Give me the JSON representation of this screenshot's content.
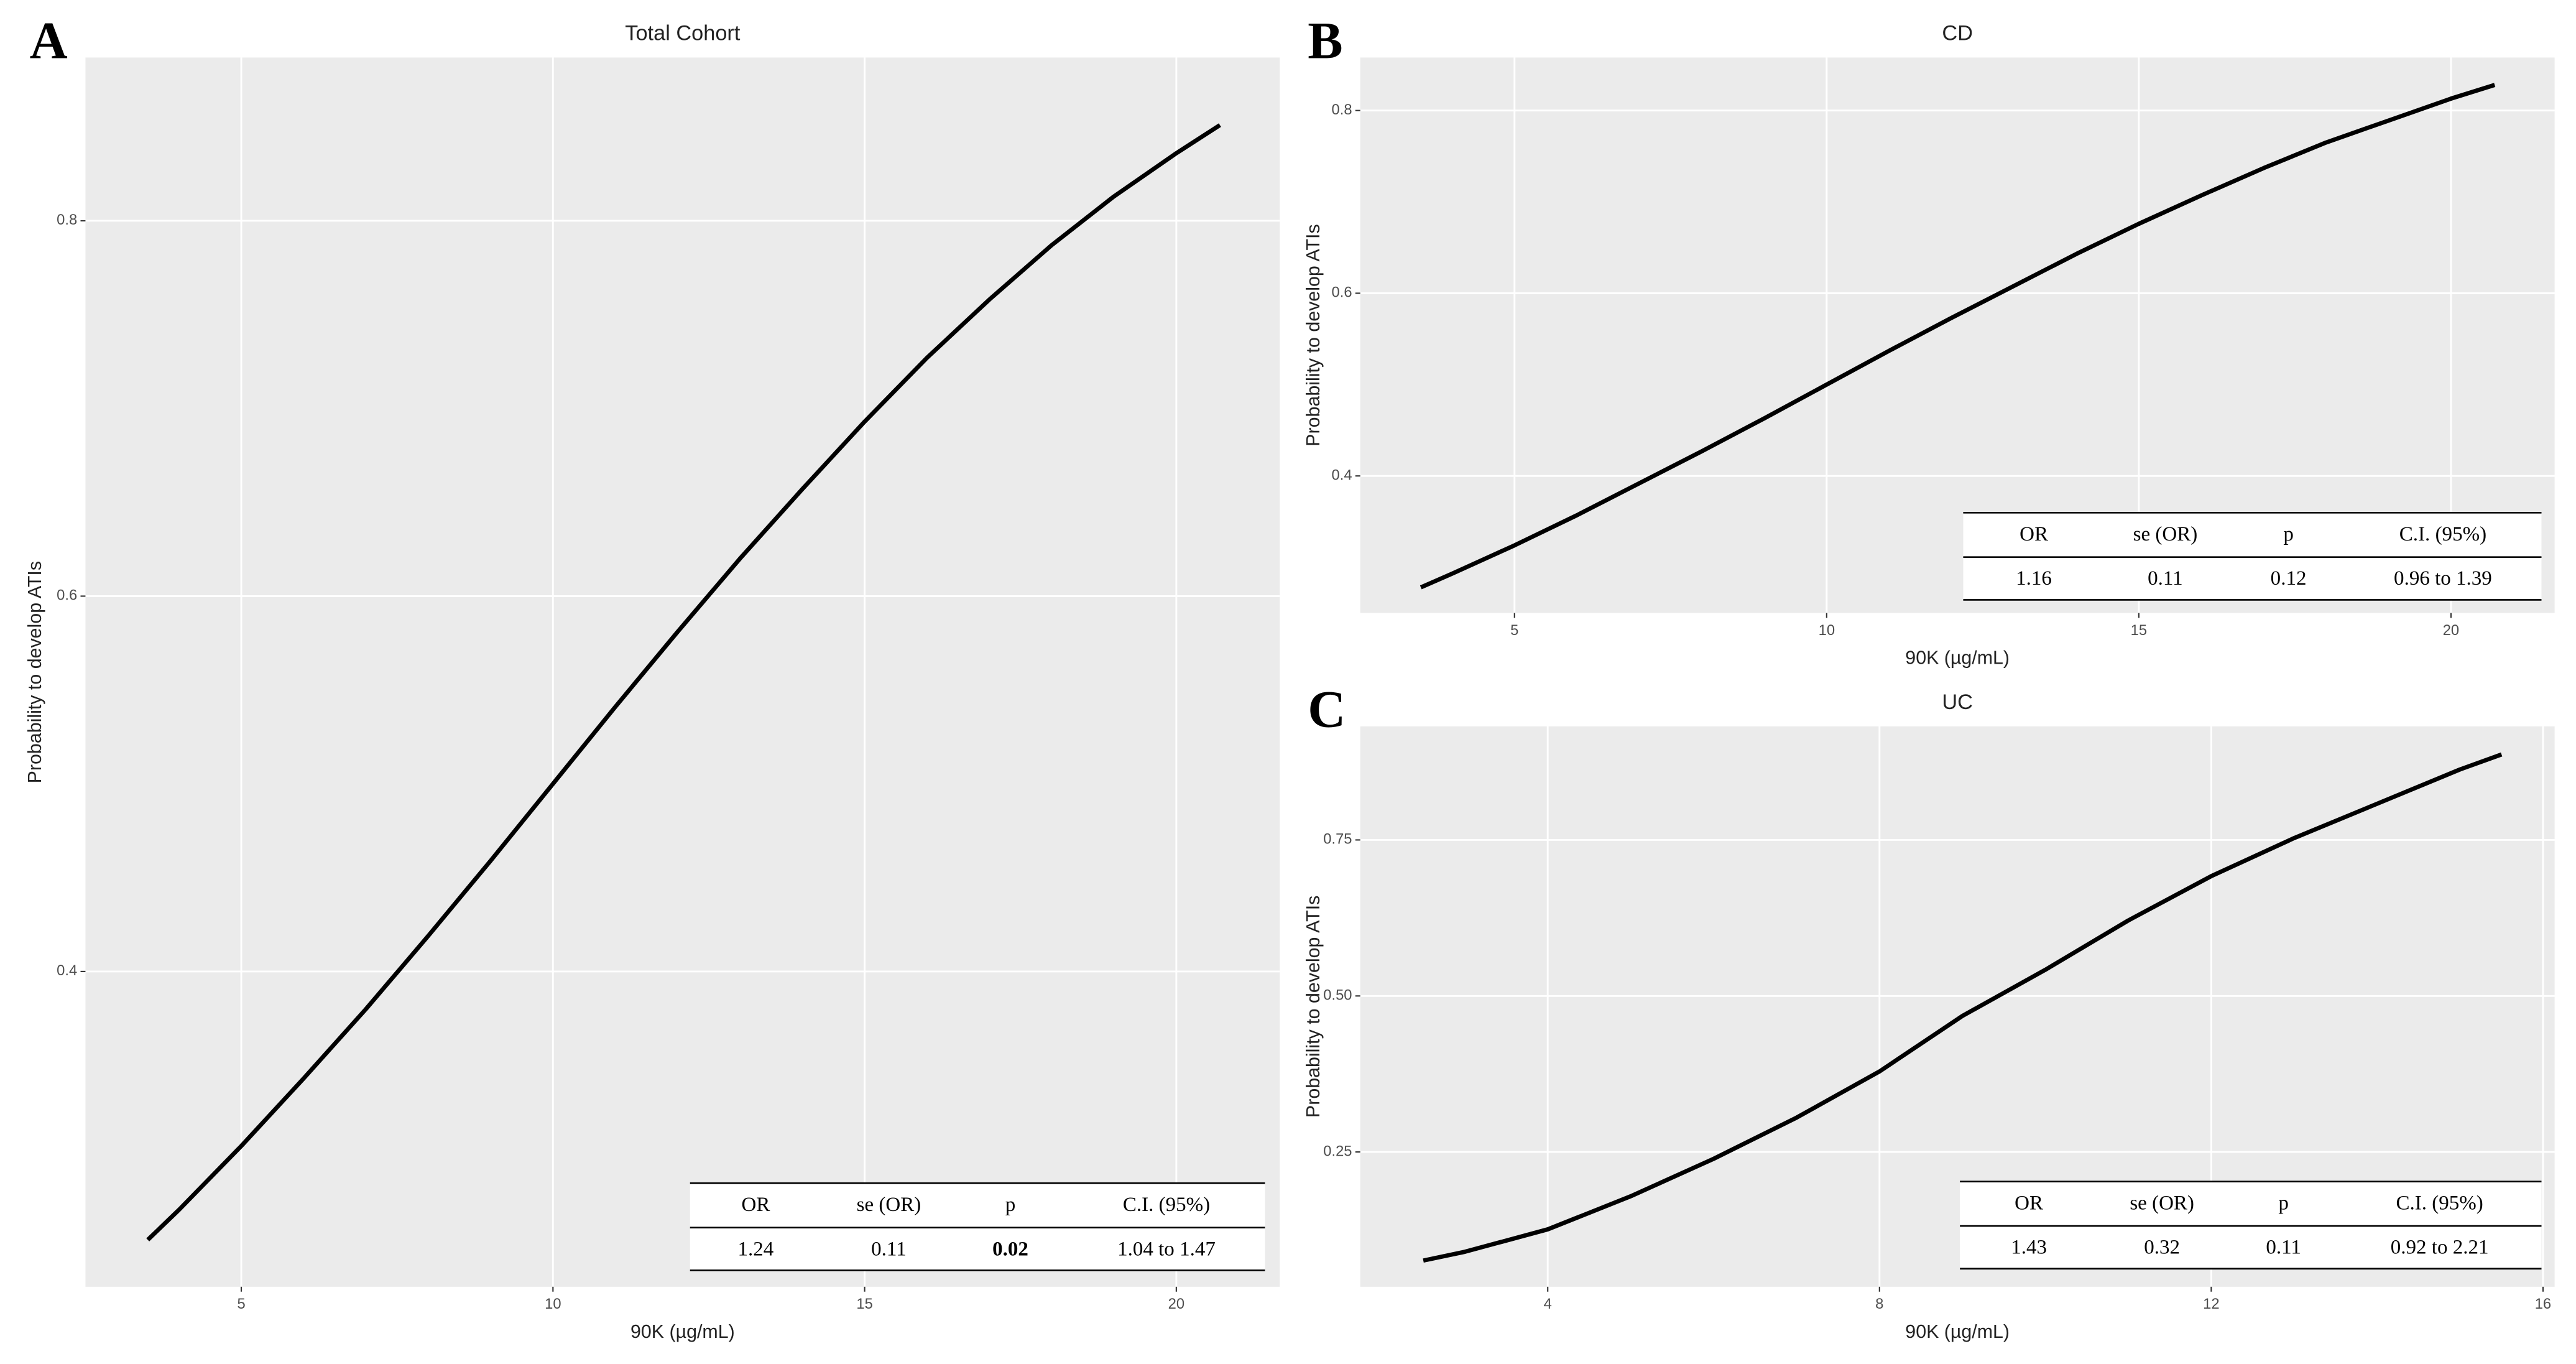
{
  "chart_data": [
    {
      "type": "line",
      "panel": "A",
      "title": "Total Cohort",
      "x_label": "90K (µg/mL)",
      "y_label": "Probability to develop ATIs",
      "x": [
        3.5,
        4,
        5,
        6,
        7,
        8,
        9,
        10,
        11,
        12,
        13,
        14,
        15,
        16,
        17,
        18,
        19,
        20,
        20.7
      ],
      "values": [
        0.257,
        0.273,
        0.307,
        0.343,
        0.38,
        0.419,
        0.459,
        0.5,
        0.541,
        0.581,
        0.62,
        0.657,
        0.693,
        0.727,
        0.758,
        0.787,
        0.813,
        0.836,
        0.851
      ],
      "color": "#000000",
      "xlim": [
        2.5,
        21.66
      ],
      "ylim": [
        0.232,
        0.887
      ],
      "xticks": [
        5,
        10,
        15,
        20
      ],
      "yticks": [
        0.4,
        0.6,
        0.8
      ],
      "grid": true,
      "table": {
        "columns": [
          "OR",
          "se (OR)",
          "p",
          "C.I. (95%)"
        ],
        "rows": [
          [
            1.24,
            0.11,
            0.02,
            "1.04 to 1.47"
          ]
        ],
        "bold_cells": [
          [
            0,
            2
          ]
        ]
      }
    },
    {
      "type": "line",
      "panel": "B",
      "title": "CD",
      "x_label": "90K (µg/mL)",
      "y_label": "Probability to develop ATIs",
      "x": [
        3.5,
        4,
        5,
        6,
        7,
        8,
        9,
        10,
        11,
        12,
        13,
        14,
        15,
        16,
        17,
        18,
        19,
        20,
        20.7
      ],
      "values": [
        0.278,
        0.293,
        0.324,
        0.357,
        0.392,
        0.427,
        0.463,
        0.5,
        0.537,
        0.573,
        0.608,
        0.643,
        0.676,
        0.707,
        0.737,
        0.765,
        0.789,
        0.813,
        0.828
      ],
      "color": "#000000",
      "xlim": [
        2.53,
        21.66
      ],
      "ylim": [
        0.25,
        0.858
      ],
      "xticks": [
        5,
        10,
        15,
        20
      ],
      "yticks": [
        0.4,
        0.6,
        0.8
      ],
      "grid": true,
      "table": {
        "columns": [
          "OR",
          "se (OR)",
          "p",
          "C.I. (95%)"
        ],
        "rows": [
          [
            1.16,
            0.11,
            0.12,
            "0.96 to 1.39"
          ]
        ],
        "bold_cells": []
      }
    },
    {
      "type": "line",
      "panel": "C",
      "title": "UC",
      "x_label": "90K (µg/mL)",
      "y_label": "Probability to develop ATIs",
      "x": [
        2.5,
        3,
        4,
        5,
        6,
        7,
        8,
        9,
        10,
        11,
        12,
        13,
        14,
        15,
        15.5
      ],
      "values": [
        0.076,
        0.09,
        0.126,
        0.179,
        0.239,
        0.305,
        0.379,
        0.468,
        0.542,
        0.621,
        0.692,
        0.753,
        0.808,
        0.863,
        0.887
      ],
      "color": "#000000",
      "xlim": [
        1.74,
        16.14
      ],
      "ylim": [
        0.034,
        0.932
      ],
      "xticks": [
        4,
        8,
        12,
        16
      ],
      "yticks": [
        0.25,
        {
          "value": 0.5,
          "label": "0.50"
        },
        0.75
      ],
      "grid": true,
      "table": {
        "columns": [
          "OR",
          "se (OR)",
          "p",
          "C.I. (95%)"
        ],
        "rows": [
          [
            1.43,
            0.32,
            0.11,
            "0.92 to 2.21"
          ]
        ],
        "bold_cells": []
      }
    }
  ]
}
